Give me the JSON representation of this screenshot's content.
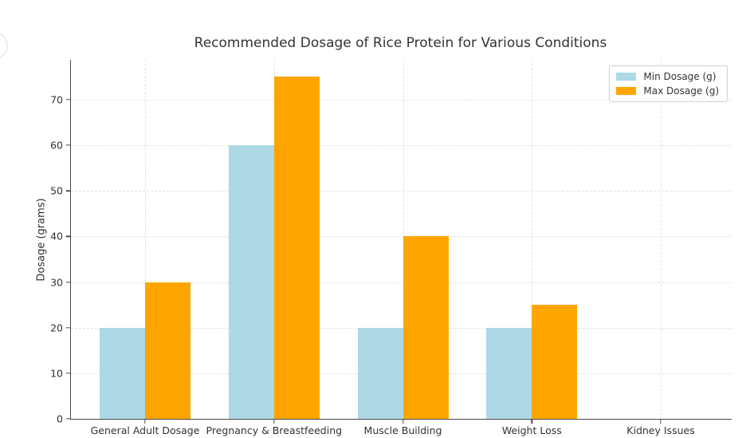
{
  "chart_data": {
    "type": "bar",
    "title": "Recommended Dosage of Rice Protein for Various Conditions",
    "xlabel": "",
    "ylabel": "Dosage (grams)",
    "categories": [
      "General Adult Dosage",
      "Pregnancy & Breastfeeding",
      "Muscle Building",
      "Weight Loss",
      "Kidney Issues"
    ],
    "series": [
      {
        "name": "Min Dosage (g)",
        "color": "#ADD8E6",
        "values": [
          20,
          60,
          20,
          20,
          0
        ]
      },
      {
        "name": "Max Dosage (g)",
        "color": "#FFA500",
        "values": [
          30,
          75,
          40,
          25,
          0
        ]
      }
    ],
    "yticks": [
      0,
      10,
      20,
      30,
      40,
      50,
      60,
      70
    ],
    "ylim": [
      0,
      78.75
    ],
    "grid": true,
    "grid_style": "dashed",
    "legend_position": "upper right"
  },
  "colors": {
    "min_bar": "#ADD8E6",
    "max_bar": "#FFA500",
    "text": "#333333",
    "spine": "#4a4a4a",
    "gridline": "#e0e0e0",
    "legend_border": "#d0d0d0",
    "background": "#ffffff"
  }
}
